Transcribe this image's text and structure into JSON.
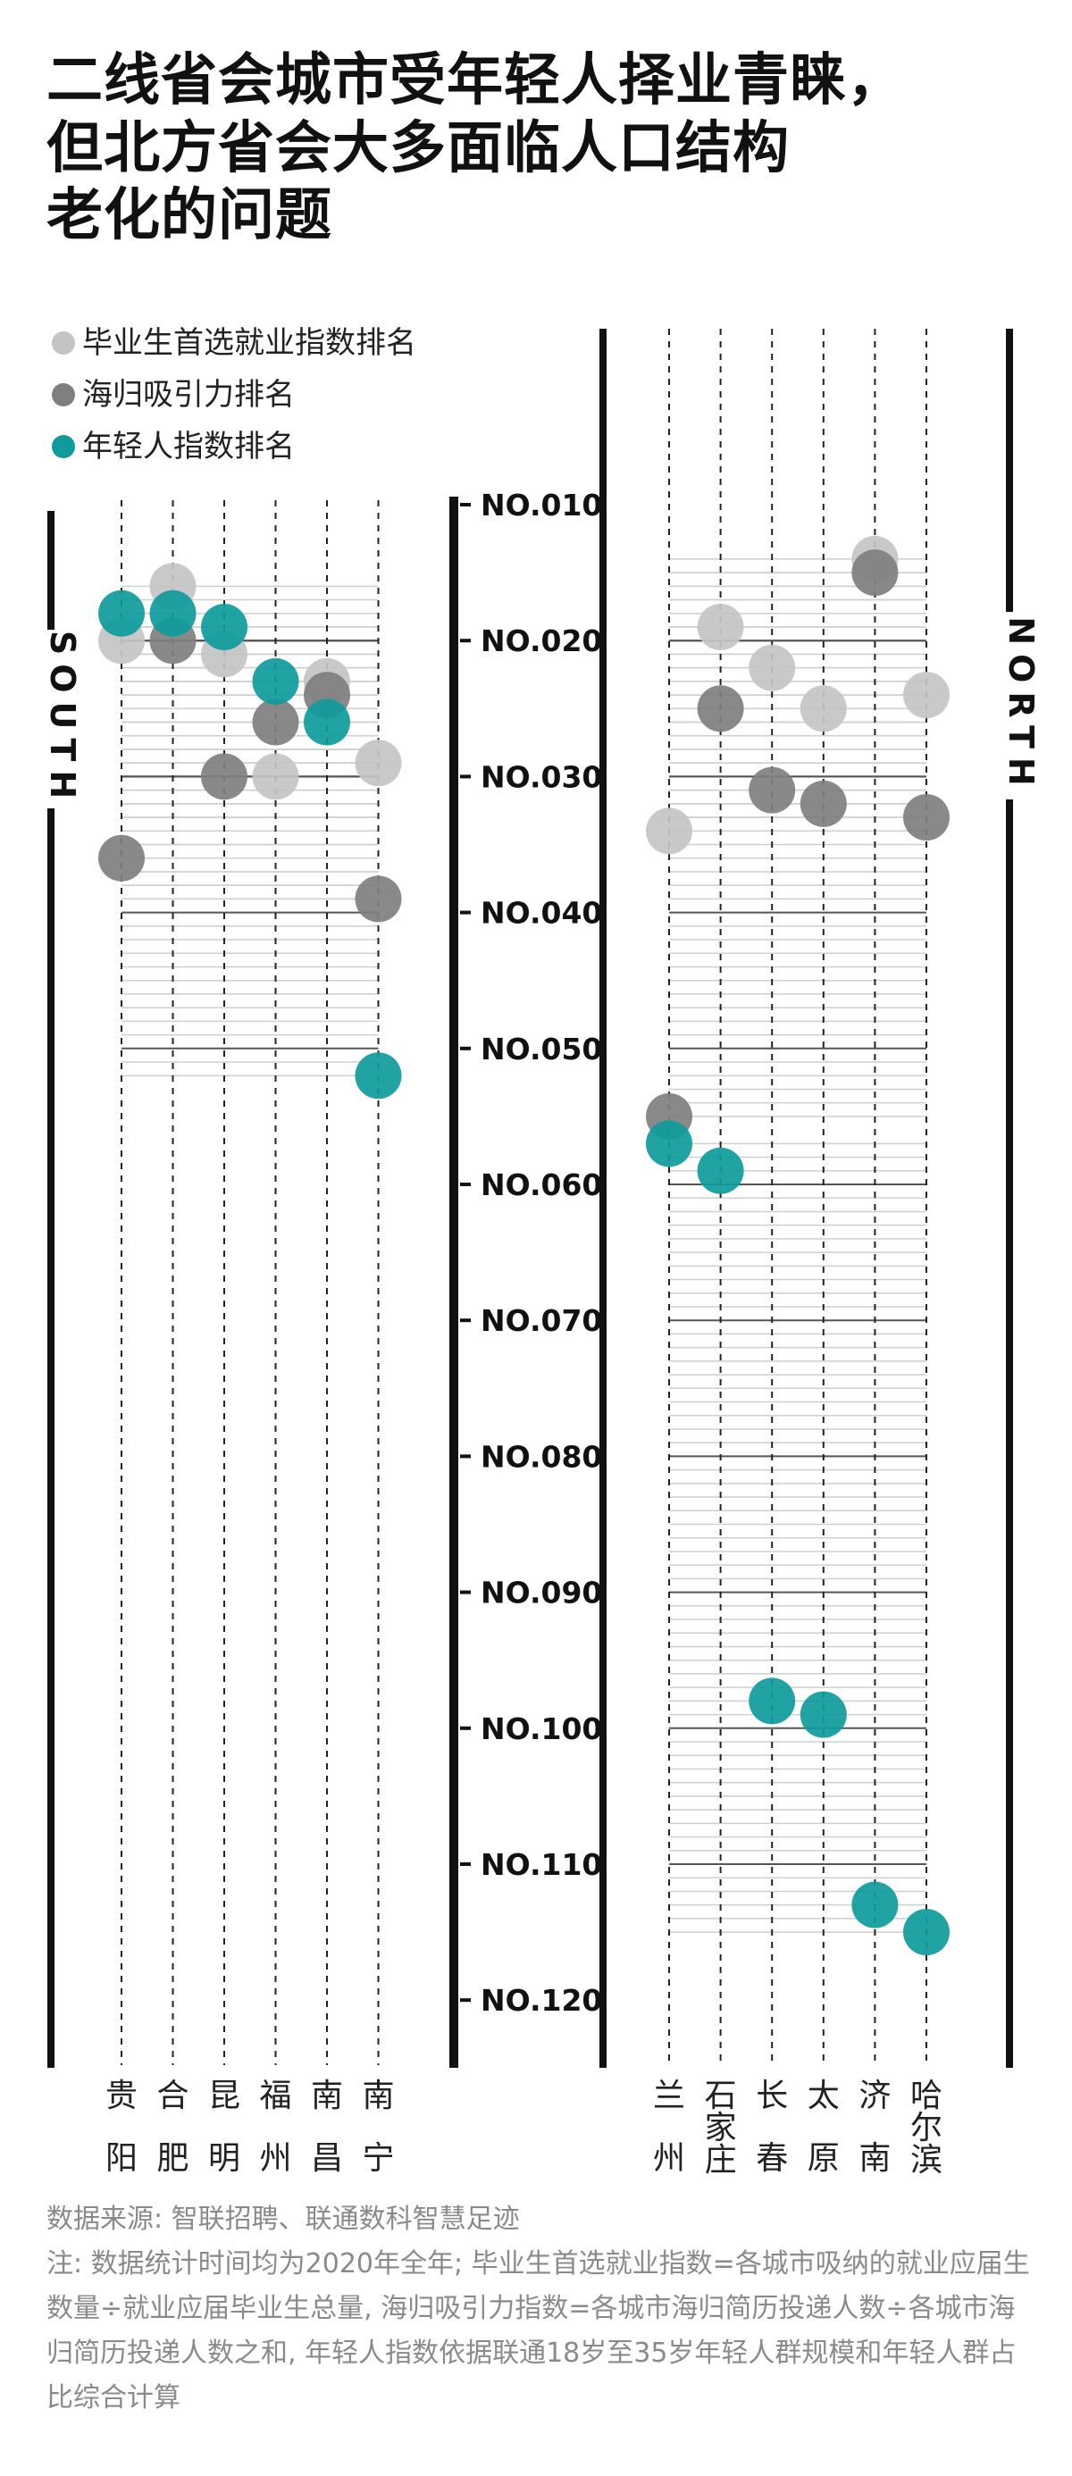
{
  "title": {
    "line1": "二线省会城市受年轻人择业青睐，",
    "line2": "但北方省会大多面临人口结构",
    "line3": "老化的问题"
  },
  "legend": [
    {
      "label": "毕业生首选就业指数排名",
      "color": "#c4c4c4"
    },
    {
      "label": "海归吸引力排名",
      "color": "#7f7f7f"
    },
    {
      "label": "年轻人指数排名",
      "color": "#0f9b9b"
    }
  ],
  "colors": {
    "graduate": "#c4c4c4",
    "returnee": "#7f7f7f",
    "youth": "#0f9b9b",
    "axis": "#111111"
  },
  "chart_data": {
    "type": "scatter",
    "y_axis": {
      "ticks": [
        "NO.010",
        "NO.020",
        "NO.030",
        "NO.040",
        "NO.050",
        "NO.060",
        "NO.070",
        "NO.080",
        "NO.090",
        "NO.100",
        "NO.110",
        "NO.120"
      ],
      "range": [
        10,
        120
      ],
      "inverted": true
    },
    "series_names": [
      "毕业生首选就业指数排名",
      "海归吸引力排名",
      "年轻人指数排名"
    ],
    "regions": [
      {
        "label": "SOUTH",
        "cities": [
          {
            "name": "贵阳",
            "label_top": "贵",
            "label_bottom": "阳",
            "graduate": 20,
            "returnee": 36,
            "youth": 18
          },
          {
            "name": "合肥",
            "label_top": "合",
            "label_bottom": "肥",
            "graduate": 16,
            "returnee": 20,
            "youth": 18
          },
          {
            "name": "昆明",
            "label_top": "昆",
            "label_bottom": "明",
            "graduate": 21,
            "returnee": 30,
            "youth": 19
          },
          {
            "name": "福州",
            "label_top": "福",
            "label_bottom": "州",
            "graduate": 30,
            "returnee": 26,
            "youth": 23
          },
          {
            "name": "南昌",
            "label_top": "南",
            "label_bottom": "昌",
            "graduate": 23,
            "returnee": 24,
            "youth": 26
          },
          {
            "name": "南宁",
            "label_top": "南",
            "label_bottom": "宁",
            "graduate": 29,
            "returnee": 39,
            "youth": 52
          }
        ]
      },
      {
        "label": "NORTH",
        "cities": [
          {
            "name": "兰州",
            "label_top": "兰",
            "label_bottom": "州",
            "graduate": 34,
            "returnee": 55,
            "youth": 57
          },
          {
            "name": "石家庄",
            "label_top": "石家庄",
            "label_bottom": "",
            "graduate": 19,
            "returnee": 25,
            "youth": 59
          },
          {
            "name": "长春",
            "label_top": "长",
            "label_bottom": "春",
            "graduate": 22,
            "returnee": 31,
            "youth": 98
          },
          {
            "name": "太原",
            "label_top": "太",
            "label_bottom": "原",
            "graduate": 25,
            "returnee": 32,
            "youth": 99
          },
          {
            "name": "济南",
            "label_top": "济",
            "label_bottom": "南",
            "graduate": 14,
            "returnee": 15,
            "youth": 113
          },
          {
            "name": "哈尔滨",
            "label_top": "哈尔滨",
            "label_bottom": "",
            "graduate": 24,
            "returnee": 33,
            "youth": 115
          }
        ]
      }
    ]
  },
  "footer": {
    "source": "数据来源: 智联招聘、联通数科智慧足迹",
    "note": "注: 数据统计时间均为2020年全年; 毕业生首选就业指数=各城市吸纳的就业应届生数量÷就业应届毕业生总量, 海归吸引力指数=各城市海归简历投递人数÷各城市海归简历投递人数之和, 年轻人指数依据联通18岁至35岁年轻人群规模和年轻人群占比综合计算"
  }
}
